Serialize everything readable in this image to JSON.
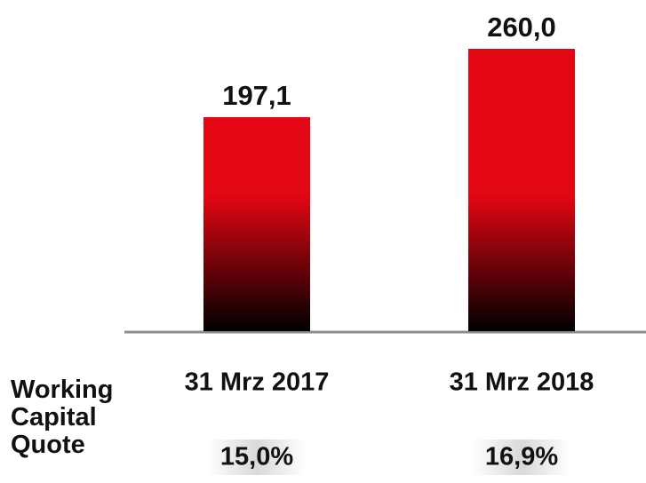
{
  "chart_data": {
    "type": "bar",
    "categories": [
      "31 Mrz 2017",
      "31 Mrz 2018"
    ],
    "values": [
      197.1,
      260.0
    ],
    "value_labels": [
      "197,1",
      "260,0"
    ],
    "color": "#e30613"
  },
  "working_capital_quote": {
    "label": "Working Capital Quote",
    "values": [
      15.0,
      16.9
    ],
    "value_labels": [
      "15,0%",
      "16,9%"
    ]
  }
}
